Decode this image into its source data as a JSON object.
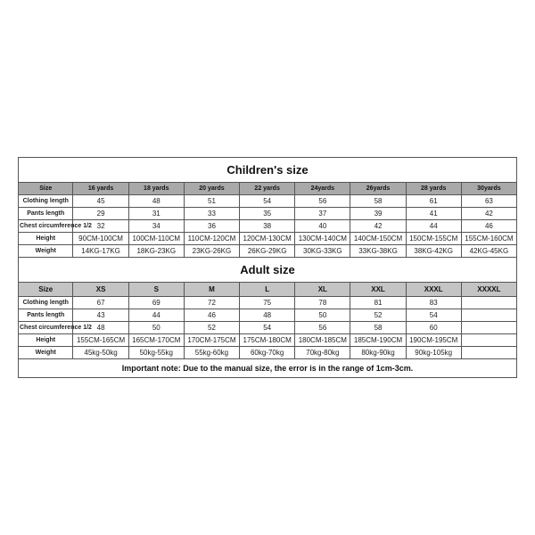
{
  "children": {
    "title": "Children's size",
    "headers": [
      "Size",
      "16 yards",
      "18 yards",
      "20 yards",
      "22 yards",
      "24yards",
      "26yards",
      "28 yards",
      "30yards"
    ],
    "rows": [
      {
        "label": "Clothing length",
        "values": [
          "45",
          "48",
          "51",
          "54",
          "56",
          "58",
          "61",
          "63"
        ]
      },
      {
        "label": "Pants length",
        "values": [
          "29",
          "31",
          "33",
          "35",
          "37",
          "39",
          "41",
          "42"
        ]
      },
      {
        "label": "Chest circumference 1/2",
        "values": [
          "32",
          "34",
          "36",
          "38",
          "40",
          "42",
          "44",
          "46"
        ]
      },
      {
        "label": "Height",
        "values": [
          "90CM-100CM",
          "100CM-110CM",
          "110CM-120CM",
          "120CM-130CM",
          "130CM-140CM",
          "140CM-150CM",
          "150CM-155CM",
          "155CM-160CM"
        ]
      },
      {
        "label": "Weight",
        "values": [
          "14KG-17KG",
          "18KG-23KG",
          "23KG-26KG",
          "26KG-29KG",
          "30KG-33KG",
          "33KG-38KG",
          "38KG-42KG",
          "42KG-45KG"
        ]
      }
    ]
  },
  "adult": {
    "title": "Adult size",
    "headers": [
      "Size",
      "XS",
      "S",
      "M",
      "L",
      "XL",
      "XXL",
      "XXXL",
      "XXXXL"
    ],
    "rows": [
      {
        "label": "Clothing length",
        "values": [
          "67",
          "69",
          "72",
          "75",
          "78",
          "81",
          "83",
          ""
        ]
      },
      {
        "label": "Pants length",
        "values": [
          "43",
          "44",
          "46",
          "48",
          "50",
          "52",
          "54",
          ""
        ]
      },
      {
        "label": "Chest circumference 1/2",
        "values": [
          "48",
          "50",
          "52",
          "54",
          "56",
          "58",
          "60",
          ""
        ]
      },
      {
        "label": "Height",
        "values": [
          "155CM-165CM",
          "165CM-170CM",
          "170CM-175CM",
          "175CM-180CM",
          "180CM-185CM",
          "185CM-190CM",
          "190CM-195CM",
          ""
        ]
      },
      {
        "label": "Weight",
        "values": [
          "45kg-50kg",
          "50kg-55kg",
          "55kg-60kg",
          "60kg-70kg",
          "70kg-80kg",
          "80kg-90kg",
          "90kg-105kg",
          ""
        ]
      }
    ]
  },
  "note": "Important note: Due to the manual size, the error is in the range of 1cm-3cm.",
  "style": {
    "border_color": "#555555",
    "header_bg_children": "#a9a9a9",
    "header_bg_adult": "#c4c4c4",
    "label_bg": "#a9a9a9",
    "page_bg": "#ffffff",
    "text_color": "#111111",
    "data_text_color": "#222222",
    "title_fontsize": 13,
    "header_fontsize": 7,
    "adult_header_fontsize": 8,
    "cell_fontsize": 8,
    "note_fontsize": 9
  }
}
